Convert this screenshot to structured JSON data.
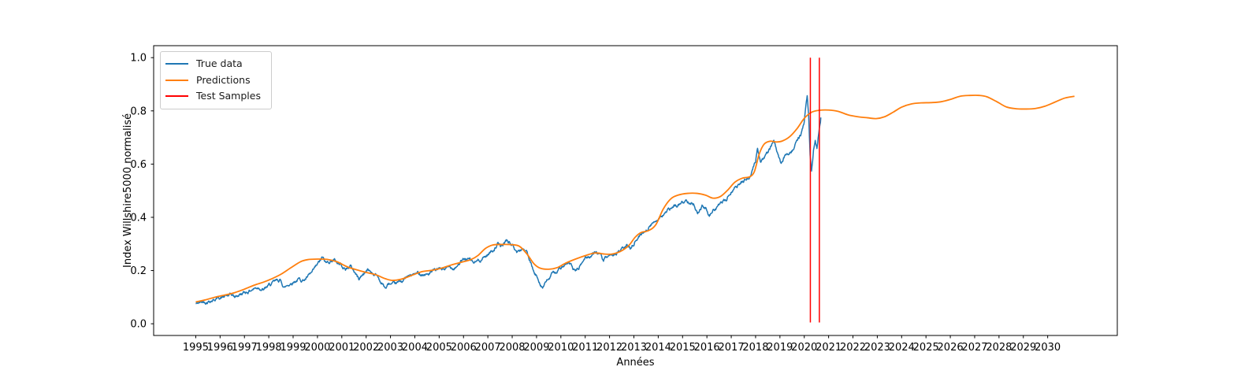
{
  "figure": {
    "xlabel": "Années",
    "ylabel": "Index Willshire5000 normalisé"
  },
  "legend": {
    "position": "upper left",
    "items": [
      {
        "label": "True data",
        "color": "#1f77b4"
      },
      {
        "label": "Predictions",
        "color": "#ff7f0e"
      },
      {
        "label": "Test Samples",
        "color": "#ff0000"
      }
    ]
  },
  "chart_data": {
    "type": "line",
    "title": "",
    "xlabel": "Années",
    "ylabel": "Index Willshire5000 normalisé",
    "grid": false,
    "legend_position": "upper left",
    "xlim": [
      1993.27,
      2032.86
    ],
    "ylim": [
      -0.044,
      1.045
    ],
    "x_ticks": [
      1995,
      1996,
      1997,
      1998,
      1999,
      2000,
      2001,
      2002,
      2003,
      2004,
      2005,
      2006,
      2007,
      2008,
      2009,
      2010,
      2011,
      2012,
      2013,
      2014,
      2015,
      2016,
      2017,
      2018,
      2019,
      2020,
      2021,
      2022,
      2023,
      2024,
      2025,
      2026,
      2027,
      2028,
      2029,
      2030
    ],
    "y_ticks": [
      0.0,
      0.2,
      0.4,
      0.6,
      0.8,
      1.0
    ],
    "true_data_noise_amplitude": 0.0085,
    "series": [
      {
        "name": "True data",
        "color": "#1f77b4",
        "style": "noisy-line",
        "points": [
          [
            1995.0,
            0.075
          ],
          [
            1995.3,
            0.082
          ],
          [
            1995.6,
            0.09
          ],
          [
            1995.9,
            0.098
          ],
          [
            1996.2,
            0.102
          ],
          [
            1996.5,
            0.106
          ],
          [
            1996.6,
            0.098
          ],
          [
            1996.8,
            0.11
          ],
          [
            1997.1,
            0.12
          ],
          [
            1997.35,
            0.132
          ],
          [
            1997.6,
            0.14
          ],
          [
            1997.8,
            0.128
          ],
          [
            1998.0,
            0.142
          ],
          [
            1998.2,
            0.152
          ],
          [
            1998.45,
            0.163
          ],
          [
            1998.65,
            0.137
          ],
          [
            1998.8,
            0.147
          ],
          [
            1999.0,
            0.16
          ],
          [
            1999.2,
            0.168
          ],
          [
            1999.4,
            0.165
          ],
          [
            1999.6,
            0.175
          ],
          [
            1999.8,
            0.19
          ],
          [
            2000.0,
            0.218
          ],
          [
            2000.2,
            0.245
          ],
          [
            2000.35,
            0.225
          ],
          [
            2000.5,
            0.235
          ],
          [
            2000.65,
            0.243
          ],
          [
            2000.85,
            0.228
          ],
          [
            2001.0,
            0.222
          ],
          [
            2001.15,
            0.205
          ],
          [
            2001.35,
            0.218
          ],
          [
            2001.55,
            0.192
          ],
          [
            2001.7,
            0.168
          ],
          [
            2001.9,
            0.19
          ],
          [
            2002.05,
            0.203
          ],
          [
            2002.25,
            0.193
          ],
          [
            2002.45,
            0.182
          ],
          [
            2002.6,
            0.158
          ],
          [
            2002.8,
            0.134
          ],
          [
            2002.95,
            0.15
          ],
          [
            2003.15,
            0.141
          ],
          [
            2003.35,
            0.152
          ],
          [
            2003.6,
            0.17
          ],
          [
            2003.9,
            0.182
          ],
          [
            2004.2,
            0.19
          ],
          [
            2004.5,
            0.186
          ],
          [
            2004.75,
            0.194
          ],
          [
            2005.0,
            0.202
          ],
          [
            2005.3,
            0.207
          ],
          [
            2005.6,
            0.213
          ],
          [
            2005.9,
            0.235
          ],
          [
            2006.15,
            0.245
          ],
          [
            2006.45,
            0.227
          ],
          [
            2006.7,
            0.242
          ],
          [
            2006.95,
            0.258
          ],
          [
            2007.2,
            0.277
          ],
          [
            2007.4,
            0.3
          ],
          [
            2007.55,
            0.288
          ],
          [
            2007.78,
            0.315
          ],
          [
            2008.0,
            0.295
          ],
          [
            2008.2,
            0.268
          ],
          [
            2008.45,
            0.284
          ],
          [
            2008.6,
            0.268
          ],
          [
            2008.75,
            0.225
          ],
          [
            2008.92,
            0.183
          ],
          [
            2009.05,
            0.17
          ],
          [
            2009.25,
            0.14
          ],
          [
            2009.45,
            0.162
          ],
          [
            2009.7,
            0.19
          ],
          [
            2009.95,
            0.207
          ],
          [
            2010.2,
            0.217
          ],
          [
            2010.4,
            0.222
          ],
          [
            2010.55,
            0.198
          ],
          [
            2010.75,
            0.21
          ],
          [
            2011.0,
            0.248
          ],
          [
            2011.25,
            0.258
          ],
          [
            2011.45,
            0.273
          ],
          [
            2011.6,
            0.258
          ],
          [
            2011.75,
            0.235
          ],
          [
            2011.9,
            0.248
          ],
          [
            2012.05,
            0.243
          ],
          [
            2012.25,
            0.265
          ],
          [
            2012.5,
            0.278
          ],
          [
            2012.7,
            0.29
          ],
          [
            2012.85,
            0.283
          ],
          [
            2013.05,
            0.312
          ],
          [
            2013.3,
            0.338
          ],
          [
            2013.55,
            0.36
          ],
          [
            2013.8,
            0.378
          ],
          [
            2014.05,
            0.405
          ],
          [
            2014.3,
            0.418
          ],
          [
            2014.55,
            0.432
          ],
          [
            2014.8,
            0.445
          ],
          [
            2015.05,
            0.458
          ],
          [
            2015.3,
            0.464
          ],
          [
            2015.5,
            0.448
          ],
          [
            2015.62,
            0.422
          ],
          [
            2015.8,
            0.445
          ],
          [
            2015.95,
            0.432
          ],
          [
            2016.1,
            0.402
          ],
          [
            2016.3,
            0.43
          ],
          [
            2016.55,
            0.448
          ],
          [
            2016.8,
            0.465
          ],
          [
            2017.05,
            0.505
          ],
          [
            2017.3,
            0.522
          ],
          [
            2017.55,
            0.538
          ],
          [
            2017.8,
            0.562
          ],
          [
            2018.0,
            0.615
          ],
          [
            2018.08,
            0.662
          ],
          [
            2018.2,
            0.612
          ],
          [
            2018.4,
            0.632
          ],
          [
            2018.6,
            0.658
          ],
          [
            2018.75,
            0.692
          ],
          [
            2018.9,
            0.638
          ],
          [
            2019.05,
            0.592
          ],
          [
            2019.2,
            0.628
          ],
          [
            2019.4,
            0.648
          ],
          [
            2019.55,
            0.662
          ],
          [
            2019.7,
            0.69
          ],
          [
            2019.85,
            0.71
          ],
          [
            2020.0,
            0.758
          ],
          [
            2020.12,
            0.858
          ],
          [
            2020.18,
            0.78
          ],
          [
            2020.24,
            0.63
          ],
          [
            2020.3,
            0.567
          ],
          [
            2020.38,
            0.65
          ],
          [
            2020.45,
            0.688
          ],
          [
            2020.52,
            0.665
          ],
          [
            2020.6,
            0.73
          ],
          [
            2020.68,
            0.775
          ]
        ]
      },
      {
        "name": "Predictions",
        "color": "#ff7f0e",
        "style": "smooth-line",
        "points": [
          [
            1995.0,
            0.082
          ],
          [
            1995.4,
            0.09
          ],
          [
            1995.8,
            0.1
          ],
          [
            1996.2,
            0.108
          ],
          [
            1996.6,
            0.117
          ],
          [
            1997.0,
            0.13
          ],
          [
            1997.4,
            0.145
          ],
          [
            1997.8,
            0.157
          ],
          [
            1998.1,
            0.168
          ],
          [
            1998.5,
            0.186
          ],
          [
            1998.9,
            0.21
          ],
          [
            1999.3,
            0.233
          ],
          [
            1999.6,
            0.241
          ],
          [
            2000.0,
            0.243
          ],
          [
            2000.4,
            0.242
          ],
          [
            2000.8,
            0.233
          ],
          [
            2001.2,
            0.215
          ],
          [
            2001.6,
            0.203
          ],
          [
            2002.0,
            0.193
          ],
          [
            2002.4,
            0.184
          ],
          [
            2002.8,
            0.169
          ],
          [
            2003.1,
            0.163
          ],
          [
            2003.5,
            0.169
          ],
          [
            2003.9,
            0.183
          ],
          [
            2004.3,
            0.196
          ],
          [
            2004.7,
            0.201
          ],
          [
            2005.1,
            0.209
          ],
          [
            2005.5,
            0.221
          ],
          [
            2005.9,
            0.231
          ],
          [
            2006.3,
            0.241
          ],
          [
            2006.6,
            0.257
          ],
          [
            2006.9,
            0.283
          ],
          [
            2007.2,
            0.296
          ],
          [
            2007.6,
            0.298
          ],
          [
            2008.0,
            0.297
          ],
          [
            2008.3,
            0.291
          ],
          [
            2008.6,
            0.263
          ],
          [
            2008.9,
            0.225
          ],
          [
            2009.15,
            0.209
          ],
          [
            2009.5,
            0.205
          ],
          [
            2009.85,
            0.211
          ],
          [
            2010.2,
            0.228
          ],
          [
            2010.6,
            0.243
          ],
          [
            2011.0,
            0.256
          ],
          [
            2011.4,
            0.266
          ],
          [
            2011.8,
            0.262
          ],
          [
            2012.1,
            0.262
          ],
          [
            2012.45,
            0.272
          ],
          [
            2012.8,
            0.295
          ],
          [
            2013.05,
            0.325
          ],
          [
            2013.3,
            0.343
          ],
          [
            2013.6,
            0.35
          ],
          [
            2013.9,
            0.372
          ],
          [
            2014.2,
            0.43
          ],
          [
            2014.5,
            0.468
          ],
          [
            2014.8,
            0.483
          ],
          [
            2015.2,
            0.49
          ],
          [
            2015.6,
            0.49
          ],
          [
            2015.95,
            0.483
          ],
          [
            2016.25,
            0.472
          ],
          [
            2016.55,
            0.478
          ],
          [
            2016.85,
            0.502
          ],
          [
            2017.15,
            0.532
          ],
          [
            2017.45,
            0.547
          ],
          [
            2017.75,
            0.552
          ],
          [
            2017.95,
            0.572
          ],
          [
            2018.15,
            0.638
          ],
          [
            2018.35,
            0.675
          ],
          [
            2018.6,
            0.686
          ],
          [
            2018.85,
            0.683
          ],
          [
            2019.1,
            0.687
          ],
          [
            2019.4,
            0.703
          ],
          [
            2019.7,
            0.733
          ],
          [
            2020.0,
            0.772
          ],
          [
            2020.3,
            0.795
          ],
          [
            2020.6,
            0.802
          ],
          [
            2021.0,
            0.803
          ],
          [
            2021.4,
            0.798
          ],
          [
            2021.8,
            0.785
          ],
          [
            2022.2,
            0.778
          ],
          [
            2022.6,
            0.774
          ],
          [
            2022.95,
            0.771
          ],
          [
            2023.3,
            0.778
          ],
          [
            2023.65,
            0.795
          ],
          [
            2024.0,
            0.814
          ],
          [
            2024.4,
            0.826
          ],
          [
            2024.8,
            0.83
          ],
          [
            2025.2,
            0.831
          ],
          [
            2025.6,
            0.834
          ],
          [
            2026.0,
            0.843
          ],
          [
            2026.4,
            0.855
          ],
          [
            2026.8,
            0.858
          ],
          [
            2027.2,
            0.858
          ],
          [
            2027.5,
            0.853
          ],
          [
            2027.9,
            0.835
          ],
          [
            2028.3,
            0.815
          ],
          [
            2028.7,
            0.808
          ],
          [
            2029.1,
            0.807
          ],
          [
            2029.5,
            0.809
          ],
          [
            2029.9,
            0.818
          ],
          [
            2030.3,
            0.833
          ],
          [
            2030.7,
            0.848
          ],
          [
            2031.1,
            0.855
          ]
        ]
      },
      {
        "name": "Test Samples",
        "color": "#ff0000",
        "style": "vertical-lines",
        "x_values": [
          2020.25,
          2020.62
        ],
        "y_span": [
          0.005,
          1.0
        ]
      }
    ]
  }
}
